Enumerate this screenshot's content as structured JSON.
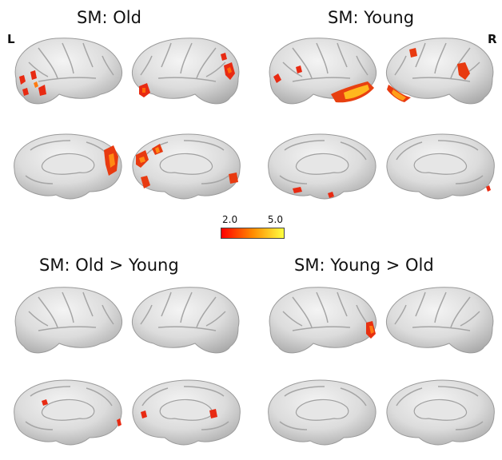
{
  "panels": [
    {
      "title": "SM: Old"
    },
    {
      "title": "SM: Young"
    },
    {
      "title": "SM: Old > Young"
    },
    {
      "title": "SM: Young > Old"
    }
  ],
  "hemisphere_labels": {
    "left": "L",
    "right": "R"
  },
  "colorbar": {
    "min": "2.0",
    "max": "5.0",
    "color_low": "#ff0000",
    "color_high": "#ffff40"
  },
  "brain_surface_color": "#d9d9d9"
}
